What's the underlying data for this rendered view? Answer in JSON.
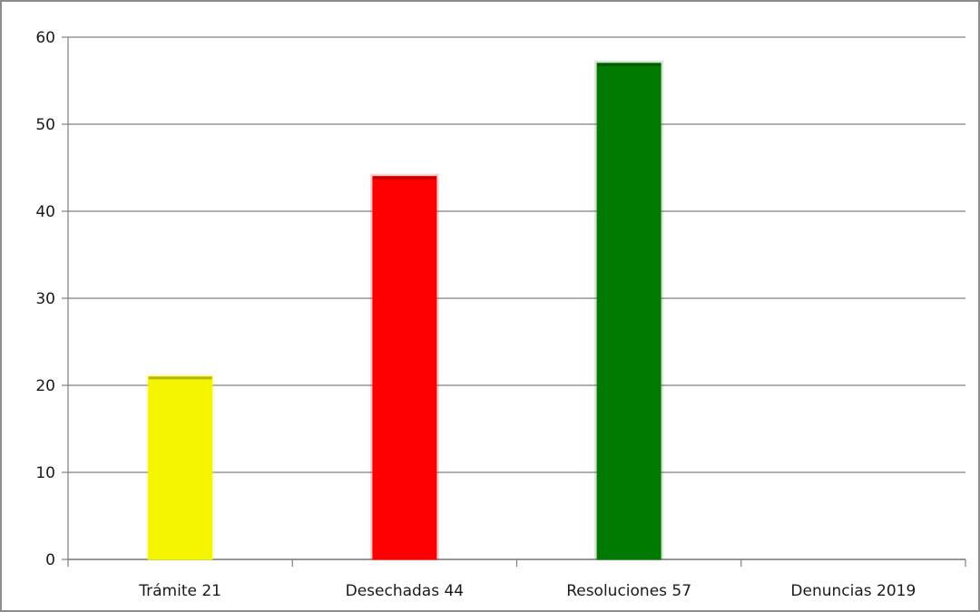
{
  "chart_data": {
    "type": "bar",
    "title": "",
    "xlabel": "",
    "ylabel": "",
    "ylim": [
      0,
      60
    ],
    "yticks": [
      0,
      10,
      20,
      30,
      40,
      50,
      60
    ],
    "grid": true,
    "legend": "none",
    "categories": [
      "Trámite 21",
      "Desechadas 44",
      "Resoluciones 57",
      "Denuncias 2019"
    ],
    "values": [
      21,
      44,
      57,
      null
    ],
    "colors": [
      "#f5f500",
      "#ff0000",
      "#007a00",
      null
    ],
    "gridline_color": "#7f7f7f"
  }
}
